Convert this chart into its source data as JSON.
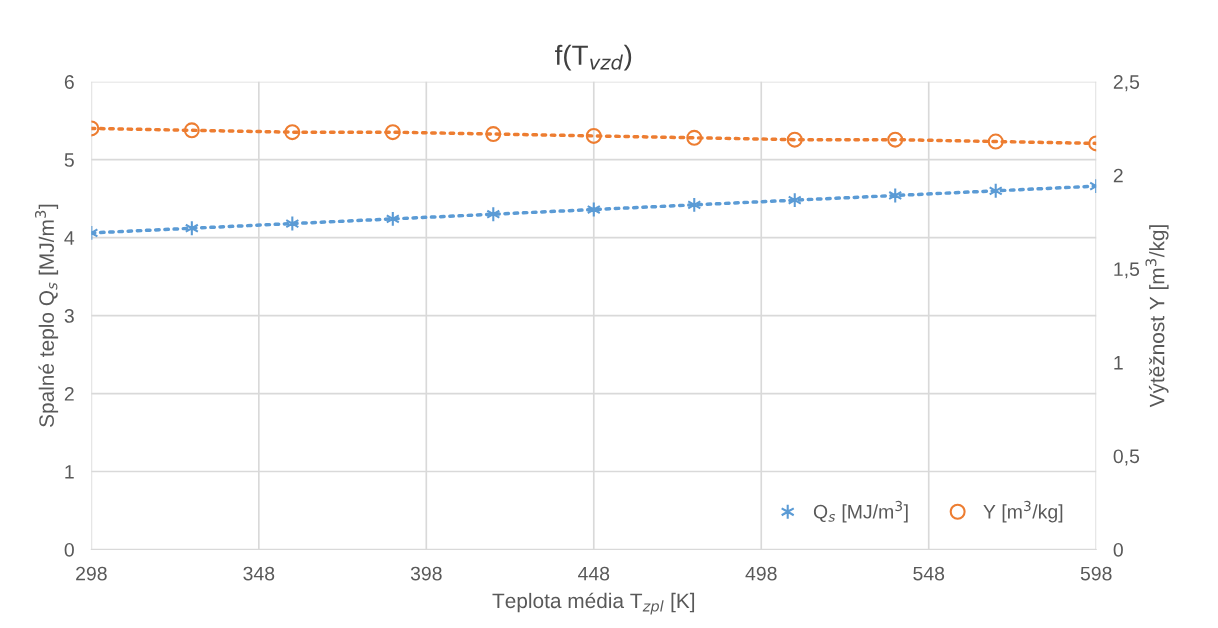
{
  "chart_data": {
    "type": "line",
    "title": "f(T$_{vzd}$)",
    "xlabel": "Teplota média T$_{zpl}$ [K]",
    "ylabel": "Spalné teplo Q$_{s}$ [MJ/m$^{3}$]",
    "y2label": "Výtěžnost Y [m$^{3}$/kg]",
    "x": [
      298,
      328,
      358,
      388,
      418,
      448,
      478,
      508,
      538,
      568,
      598
    ],
    "series": [
      {
        "name": "Q$_{s}$ [MJ/m$^{3}$]",
        "color": "#5b9bd5",
        "marker": "cross",
        "values": [
          4.06,
          4.12,
          4.18,
          4.24,
          4.3,
          4.36,
          4.42,
          4.48,
          4.54,
          4.6,
          4.66
        ]
      },
      {
        "name": "Y [m$^{3}$/kg]",
        "color": "#ed7d31",
        "marker": "circle",
        "axis": "y2",
        "values": [
          2.25,
          2.24,
          2.23,
          2.23,
          2.22,
          2.21,
          2.2,
          2.19,
          2.19,
          2.18,
          2.17
        ]
      }
    ],
    "xlim": [
      298,
      598
    ],
    "xticks": [
      298,
      348,
      398,
      448,
      498,
      548,
      598
    ],
    "ylim": [
      0,
      6
    ],
    "yticks": [
      0,
      1,
      2,
      3,
      4,
      5,
      6
    ],
    "y2lim": [
      0,
      2.5
    ],
    "y2ticks": [
      0,
      {
        "value": 0.5,
        "label": "0,5"
      },
      1,
      {
        "value": 1.5,
        "label": "1,5"
      },
      2,
      {
        "value": 2.5,
        "label": "2,5"
      }
    ],
    "grid": true,
    "legend": "bottom right",
    "line_style": "dotted"
  }
}
